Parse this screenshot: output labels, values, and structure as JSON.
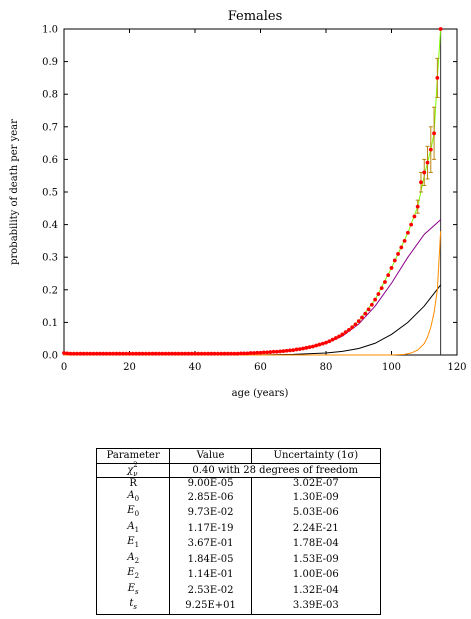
{
  "chart_data": {
    "type": "line",
    "title": "Females",
    "xlabel": "age (years)",
    "ylabel": "probability of death per year",
    "xlim": [
      0,
      120
    ],
    "ylim": [
      0,
      1.0
    ],
    "x_ticks": [
      0,
      20,
      40,
      60,
      80,
      100,
      120
    ],
    "x_tick_labels": [
      "0",
      "20",
      "40",
      "60",
      "80",
      "100",
      "120"
    ],
    "y_ticks": [
      0,
      0.1,
      0.2,
      0.3,
      0.4,
      0.5,
      0.6,
      0.7,
      0.8,
      0.9,
      1.0
    ],
    "y_tick_labels": [
      "0.0",
      "0.1",
      "0.2",
      "0.3",
      "0.4",
      "0.5",
      "0.6",
      "0.7",
      "0.8",
      "0.9",
      "1.0"
    ],
    "grid": false,
    "vertical_line_x": 115,
    "series": [
      {
        "kind": "points_with_error_bars",
        "color": "#ff0000",
        "error_color": "#b8860b",
        "points": [
          [
            0,
            0.006
          ],
          [
            1,
            0.005
          ],
          [
            2,
            0.004
          ],
          [
            3,
            0.004
          ],
          [
            4,
            0.004
          ],
          [
            5,
            0.004
          ],
          [
            6,
            0.004
          ],
          [
            7,
            0.004
          ],
          [
            8,
            0.004
          ],
          [
            9,
            0.004
          ],
          [
            10,
            0.004
          ],
          [
            11,
            0.004
          ],
          [
            12,
            0.004
          ],
          [
            13,
            0.004
          ],
          [
            14,
            0.004
          ],
          [
            15,
            0.004
          ],
          [
            16,
            0.004
          ],
          [
            17,
            0.004
          ],
          [
            18,
            0.004
          ],
          [
            19,
            0.004
          ],
          [
            20,
            0.004
          ],
          [
            21,
            0.004
          ],
          [
            22,
            0.004
          ],
          [
            23,
            0.004
          ],
          [
            24,
            0.004
          ],
          [
            25,
            0.004
          ],
          [
            26,
            0.004
          ],
          [
            27,
            0.004
          ],
          [
            28,
            0.004
          ],
          [
            29,
            0.004
          ],
          [
            30,
            0.004
          ],
          [
            31,
            0.004
          ],
          [
            32,
            0.004
          ],
          [
            33,
            0.004
          ],
          [
            34,
            0.004
          ],
          [
            35,
            0.004
          ],
          [
            36,
            0.004
          ],
          [
            37,
            0.004
          ],
          [
            38,
            0.004
          ],
          [
            39,
            0.004
          ],
          [
            40,
            0.004
          ],
          [
            41,
            0.004
          ],
          [
            42,
            0.004
          ],
          [
            43,
            0.004
          ],
          [
            44,
            0.004
          ],
          [
            45,
            0.004
          ],
          [
            46,
            0.004
          ],
          [
            47,
            0.004
          ],
          [
            48,
            0.004
          ],
          [
            49,
            0.004
          ],
          [
            50,
            0.004
          ],
          [
            51,
            0.004
          ],
          [
            52,
            0.004
          ],
          [
            53,
            0.004
          ],
          [
            54,
            0.005
          ],
          [
            55,
            0.005
          ],
          [
            56,
            0.005
          ],
          [
            57,
            0.006
          ],
          [
            58,
            0.006
          ],
          [
            59,
            0.007
          ],
          [
            60,
            0.007
          ],
          [
            61,
            0.008
          ],
          [
            62,
            0.008
          ],
          [
            63,
            0.009
          ],
          [
            64,
            0.01
          ],
          [
            65,
            0.01
          ],
          [
            66,
            0.011
          ],
          [
            67,
            0.012
          ],
          [
            68,
            0.013
          ],
          [
            69,
            0.014
          ],
          [
            70,
            0.015
          ],
          [
            71,
            0.017
          ],
          [
            72,
            0.018
          ],
          [
            73,
            0.02
          ],
          [
            74,
            0.022
          ],
          [
            75,
            0.024
          ],
          [
            76,
            0.026
          ],
          [
            77,
            0.029
          ],
          [
            78,
            0.032
          ],
          [
            79,
            0.035
          ],
          [
            80,
            0.038
          ],
          [
            81,
            0.042
          ],
          [
            82,
            0.047
          ],
          [
            83,
            0.052
          ],
          [
            84,
            0.057
          ],
          [
            85,
            0.063
          ],
          [
            86,
            0.07
          ],
          [
            87,
            0.077
          ],
          [
            88,
            0.085
          ],
          [
            89,
            0.094
          ],
          [
            90,
            0.104
          ],
          [
            91,
            0.115
          ],
          [
            92,
            0.127
          ],
          [
            93,
            0.14
          ],
          [
            94,
            0.154
          ],
          [
            95,
            0.17
          ],
          [
            96,
            0.187
          ],
          [
            97,
            0.205
          ],
          [
            98,
            0.224
          ],
          [
            99,
            0.245
          ],
          [
            100,
            0.267
          ],
          [
            101,
            0.29
          ],
          [
            102,
            0.31
          ],
          [
            103,
            0.33
          ],
          [
            104,
            0.35
          ],
          [
            105,
            0.375
          ],
          [
            106,
            0.4
          ],
          [
            107,
            0.425
          ],
          [
            108,
            0.455
          ],
          [
            109,
            0.53
          ],
          [
            110,
            0.56
          ],
          [
            111,
            0.59
          ],
          [
            112,
            0.63
          ],
          [
            113,
            0.68
          ],
          [
            114,
            0.85
          ],
          [
            115,
            1.0
          ]
        ],
        "errors": [
          [
            108,
            0.02
          ],
          [
            109,
            0.03
          ],
          [
            110,
            0.04
          ],
          [
            111,
            0.05
          ],
          [
            112,
            0.07
          ],
          [
            113,
            0.08
          ],
          [
            114,
            0.06
          ]
        ]
      },
      {
        "kind": "line",
        "color": "#7cfc00",
        "points": [
          [
            0,
            0.006
          ],
          [
            2,
            0.004
          ],
          [
            50,
            0.004
          ],
          [
            55,
            0.005
          ],
          [
            60,
            0.007
          ],
          [
            65,
            0.01
          ],
          [
            70,
            0.015
          ],
          [
            75,
            0.024
          ],
          [
            80,
            0.038
          ],
          [
            85,
            0.063
          ],
          [
            90,
            0.104
          ],
          [
            95,
            0.17
          ],
          [
            100,
            0.267
          ],
          [
            105,
            0.375
          ],
          [
            108,
            0.455
          ],
          [
            110,
            0.55
          ],
          [
            112,
            0.63
          ],
          [
            113,
            0.68
          ],
          [
            114,
            0.85
          ],
          [
            115,
            1.0
          ]
        ]
      },
      {
        "kind": "line",
        "color": "#8b008b",
        "points": [
          [
            0,
            0.0
          ],
          [
            60,
            0.006
          ],
          [
            65,
            0.009
          ],
          [
            70,
            0.014
          ],
          [
            75,
            0.022
          ],
          [
            80,
            0.036
          ],
          [
            85,
            0.058
          ],
          [
            90,
            0.095
          ],
          [
            95,
            0.15
          ],
          [
            100,
            0.22
          ],
          [
            105,
            0.3
          ],
          [
            110,
            0.37
          ],
          [
            115,
            0.415
          ]
        ]
      },
      {
        "kind": "line",
        "color": "#000000",
        "points": [
          [
            0,
            0.0
          ],
          [
            60,
            0.0005
          ],
          [
            70,
            0.002
          ],
          [
            80,
            0.006
          ],
          [
            85,
            0.011
          ],
          [
            90,
            0.02
          ],
          [
            95,
            0.036
          ],
          [
            100,
            0.063
          ],
          [
            105,
            0.1
          ],
          [
            110,
            0.15
          ],
          [
            115,
            0.215
          ]
        ]
      },
      {
        "kind": "line",
        "color": "#ff8c00",
        "points": [
          [
            0,
            0.0
          ],
          [
            100,
            0.0
          ],
          [
            104,
            0.002
          ],
          [
            106,
            0.006
          ],
          [
            108,
            0.015
          ],
          [
            110,
            0.035
          ],
          [
            111,
            0.055
          ],
          [
            112,
            0.085
          ],
          [
            113,
            0.13
          ],
          [
            114,
            0.2
          ],
          [
            115,
            0.38
          ]
        ]
      }
    ]
  },
  "table": {
    "headers": [
      "Parameter",
      "Value",
      "Uncertainty (1σ)"
    ],
    "chi": {
      "symbol": "χ",
      "sub": "ν",
      "sup": "2",
      "value": "0.40 with 28 degrees of freedom"
    },
    "rows": [
      {
        "param": "R",
        "sub": "",
        "value": "9.00E-05",
        "uncertainty": "3.02E-07"
      },
      {
        "param": "A",
        "sub": "0",
        "value": "2.85E-06",
        "uncertainty": "1.30E-09"
      },
      {
        "param": "E",
        "sub": "0",
        "value": "9.73E-02",
        "uncertainty": "5.03E-06"
      },
      {
        "param": "A",
        "sub": "1",
        "value": "1.17E-19",
        "uncertainty": "2.24E-21"
      },
      {
        "param": "E",
        "sub": "1",
        "value": "3.67E-01",
        "uncertainty": "1.78E-04"
      },
      {
        "param": "A",
        "sub": "2",
        "value": "1.84E-05",
        "uncertainty": "1.53E-09"
      },
      {
        "param": "E",
        "sub": "2",
        "value": "1.14E-01",
        "uncertainty": "1.00E-06"
      },
      {
        "param": "E",
        "sub": "s",
        "value": "2.53E-02",
        "uncertainty": "1.32E-04"
      },
      {
        "param": "t",
        "sub": "s",
        "value": "9.25E+01",
        "uncertainty": "3.39E-03"
      }
    ]
  }
}
